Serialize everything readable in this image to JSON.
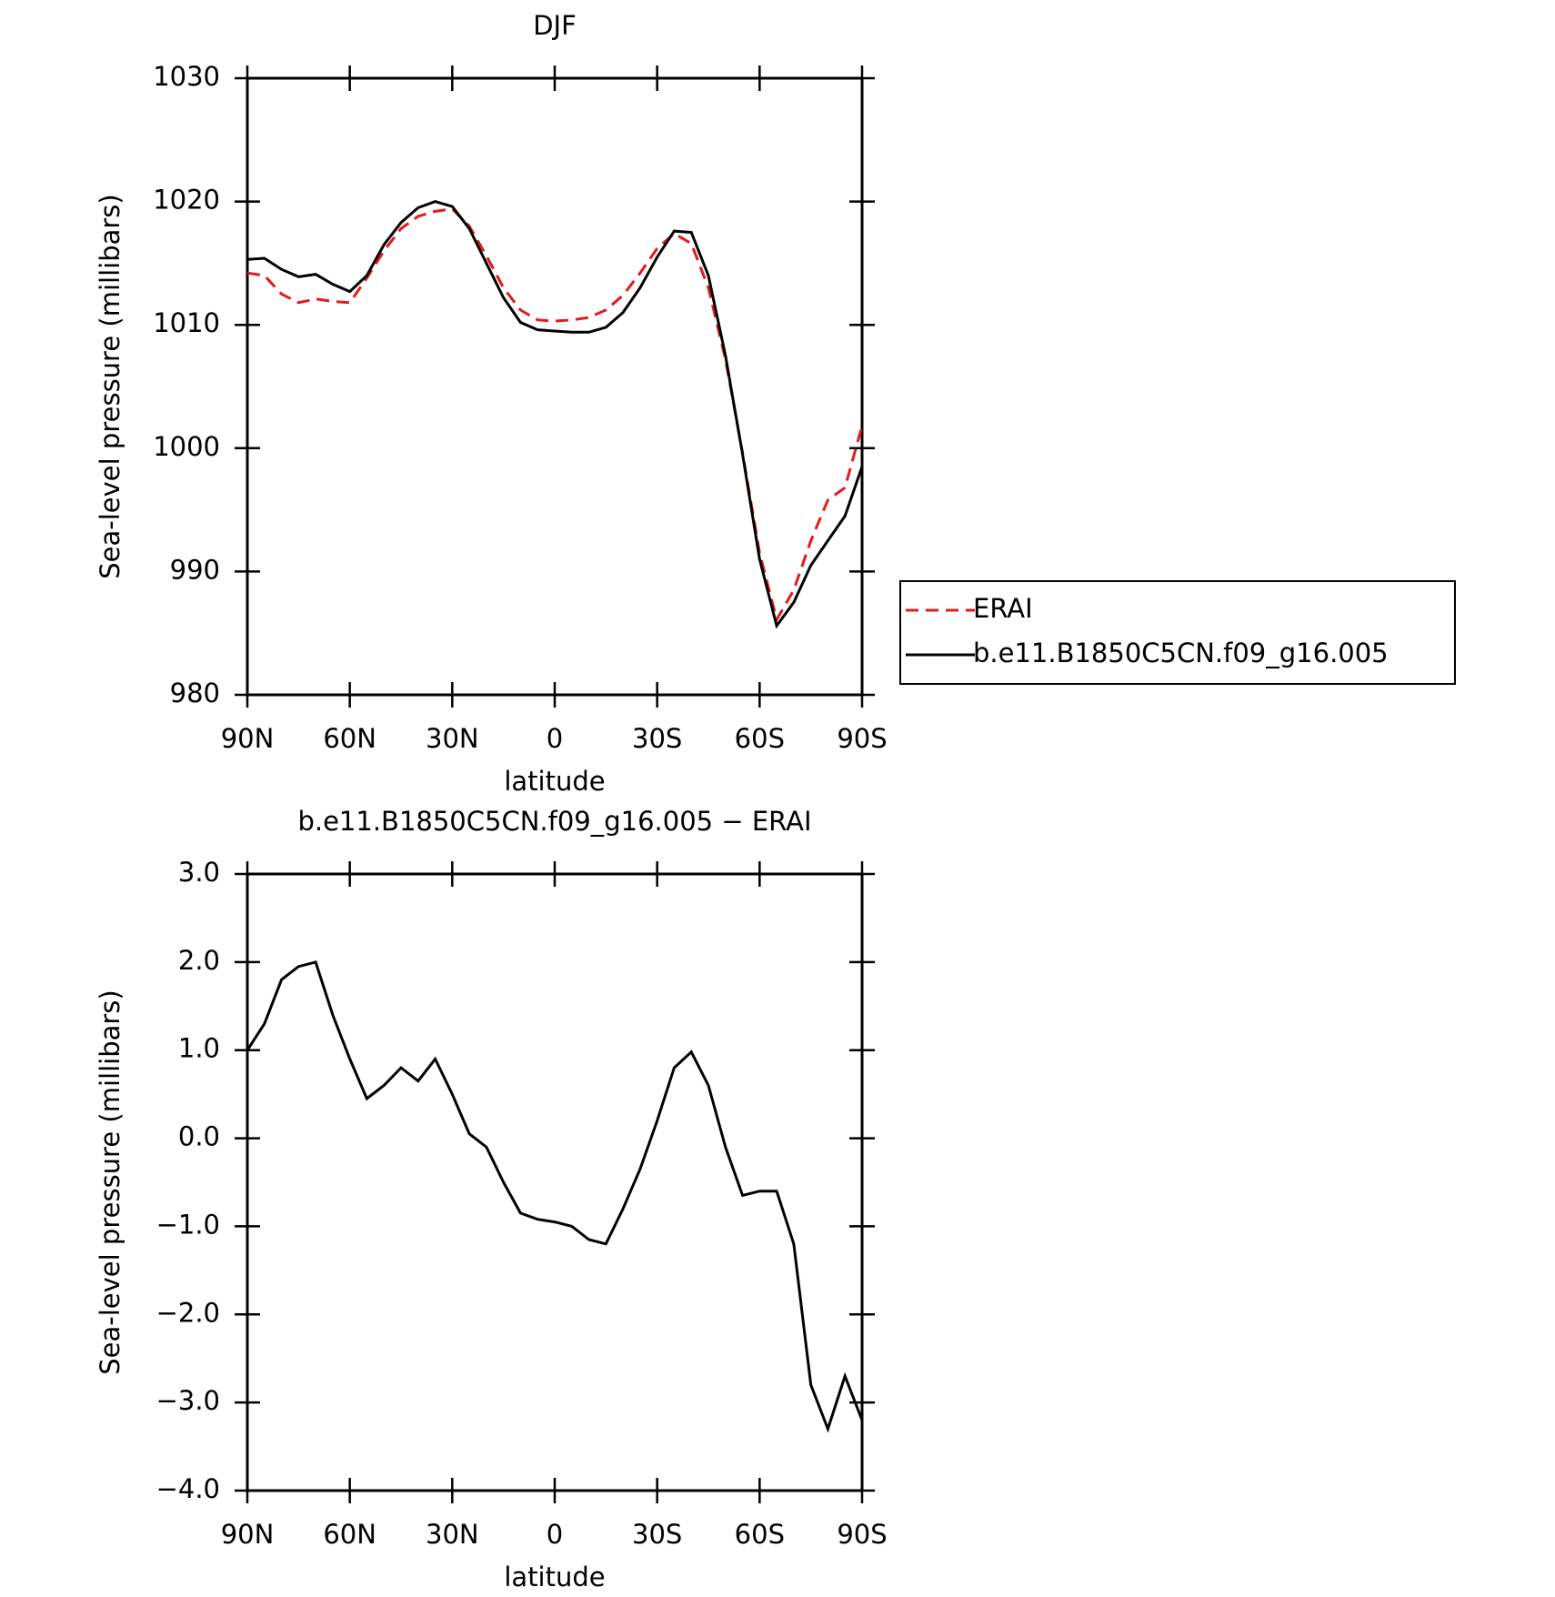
{
  "chart_data": [
    {
      "type": "line",
      "title": "DJF",
      "xlabel": "latitude",
      "ylabel": "Sea-level pressure (millibars)",
      "x": [
        90,
        85,
        80,
        75,
        70,
        65,
        60,
        55,
        50,
        45,
        40,
        35,
        30,
        25,
        20,
        15,
        10,
        5,
        0,
        -5,
        -10,
        -15,
        -20,
        -25,
        -30,
        -35,
        -40,
        -45,
        -50,
        -55,
        -60,
        -65,
        -70,
        -75,
        -80,
        -85,
        -90
      ],
      "series": [
        {
          "name": "ERAI",
          "color": "#e41a1c",
          "line_style": "dashed",
          "values": [
            1014.2,
            1014.0,
            1012.5,
            1011.8,
            1012.1,
            1011.9,
            1011.8,
            1013.8,
            1016.0,
            1017.8,
            1018.8,
            1019.2,
            1019.4,
            1018.0,
            1015.6,
            1013.0,
            1011.2,
            1010.4,
            1010.3,
            1010.4,
            1010.6,
            1011.2,
            1012.4,
            1014.2,
            1016.2,
            1017.4,
            1016.6,
            1013.0,
            1007.2,
            999.6,
            991.5,
            986.1,
            988.5,
            992.5,
            995.8,
            996.8,
            1001.8
          ]
        },
        {
          "name": "b.e11.B1850C5CN.f09_g16.005",
          "color": "#000000",
          "line_style": "solid",
          "values": [
            1015.3,
            1015.4,
            1014.5,
            1013.9,
            1014.1,
            1013.3,
            1012.7,
            1014.0,
            1016.5,
            1018.3,
            1019.5,
            1020.0,
            1019.6,
            1017.8,
            1015.0,
            1012.2,
            1010.2,
            1009.6,
            1009.5,
            1009.4,
            1009.4,
            1009.8,
            1011.0,
            1013.0,
            1015.5,
            1017.6,
            1017.5,
            1014.0,
            1007.5,
            999.5,
            991.0,
            985.6,
            987.5,
            990.5,
            992.5,
            994.5,
            998.5
          ]
        }
      ],
      "xlim": [
        90,
        -90
      ],
      "xticks": [
        {
          "value": 90,
          "label": "90N"
        },
        {
          "value": 60,
          "label": "60N"
        },
        {
          "value": 30,
          "label": "30N"
        },
        0,
        {
          "value": -30,
          "label": "30S"
        },
        {
          "value": -60,
          "label": "60S"
        },
        {
          "value": -90,
          "label": "90S"
        }
      ],
      "ylim": [
        980,
        1030
      ],
      "yticks": [
        980,
        990,
        1000,
        1010,
        1020,
        1030
      ],
      "legend": "right"
    },
    {
      "type": "line",
      "title": "b.e11.B1850C5CN.f09_g16.005 − ERAI",
      "xlabel": "latitude",
      "ylabel": "Sea-level pressure (millibars)",
      "x": [
        90,
        85,
        80,
        75,
        70,
        65,
        60,
        55,
        50,
        45,
        40,
        35,
        30,
        25,
        20,
        15,
        10,
        5,
        0,
        -5,
        -10,
        -15,
        -20,
        -25,
        -30,
        -35,
        -40,
        -45,
        -50,
        -55,
        -60,
        -65,
        -70,
        -75,
        -80,
        -85,
        -90
      ],
      "values": [
        1.0,
        1.3,
        1.8,
        1.95,
        2.0,
        1.4,
        0.9,
        0.45,
        0.6,
        0.8,
        0.65,
        0.9,
        0.5,
        0.05,
        -0.1,
        -0.5,
        -0.85,
        -0.92,
        -0.95,
        -1.0,
        -1.15,
        -1.2,
        -0.8,
        -0.35,
        0.2,
        0.8,
        0.98,
        0.6,
        -0.1,
        -0.65,
        -0.6,
        -0.6,
        -1.2,
        -2.8,
        -3.3,
        -2.7,
        -3.2
      ],
      "color": "#000000",
      "xlim": [
        90,
        -90
      ],
      "xticks": [
        {
          "value": 90,
          "label": "90N"
        },
        {
          "value": 60,
          "label": "60N"
        },
        {
          "value": 30,
          "label": "30N"
        },
        0,
        {
          "value": -30,
          "label": "30S"
        },
        {
          "value": -60,
          "label": "60S"
        },
        {
          "value": -90,
          "label": "90S"
        }
      ],
      "ylim": [
        -4,
        3
      ],
      "yticks": [
        {
          "value": -4,
          "label": "−4.0"
        },
        {
          "value": -3,
          "label": "−3.0"
        },
        {
          "value": -2,
          "label": "−2.0"
        },
        {
          "value": -1,
          "label": "−1.0"
        },
        {
          "value": 0,
          "label": "0.0"
        },
        {
          "value": 1,
          "label": "1.0"
        },
        {
          "value": 2,
          "label": "2.0"
        },
        {
          "value": 3,
          "label": "3.0"
        }
      ]
    }
  ]
}
